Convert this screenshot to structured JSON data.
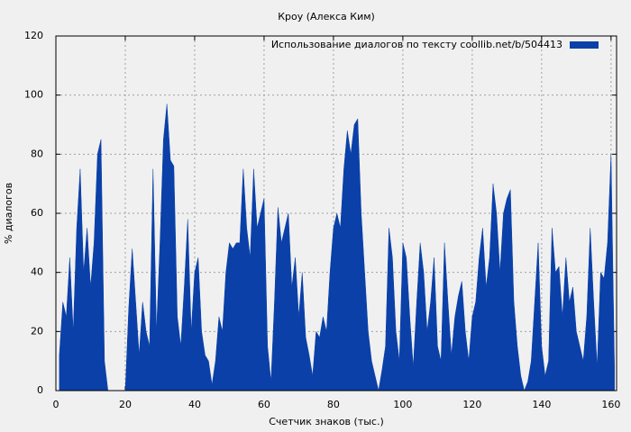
{
  "chart_data": {
    "type": "area",
    "title": "Кроу (Алекса Ким)",
    "x_label": "Счетчик знаков (тыс.)",
    "y_label": "% диалогов",
    "series": [
      {
        "name": "Использование диалогов по тексту  coollib.net/b/504413",
        "color": "#0a40a8",
        "x": [
          1,
          2,
          3,
          4,
          5,
          6,
          7,
          8,
          9,
          10,
          11,
          12,
          13,
          14,
          15,
          16,
          17,
          18,
          19,
          20,
          21,
          22,
          23,
          24,
          25,
          26,
          27,
          28,
          29,
          30,
          31,
          32,
          33,
          34,
          35,
          36,
          37,
          38,
          39,
          40,
          41,
          42,
          43,
          44,
          45,
          46,
          47,
          48,
          49,
          50,
          51,
          52,
          53,
          54,
          55,
          56,
          57,
          58,
          59,
          60,
          61,
          62,
          63,
          64,
          65,
          66,
          67,
          68,
          69,
          70,
          71,
          72,
          73,
          74,
          75,
          76,
          77,
          78,
          79,
          80,
          81,
          82,
          83,
          84,
          85,
          86,
          87,
          88,
          89,
          90,
          91,
          92,
          93,
          94,
          95,
          96,
          97,
          98,
          99,
          100,
          101,
          102,
          103,
          104,
          105,
          106,
          107,
          108,
          109,
          110,
          111,
          112,
          113,
          114,
          115,
          116,
          117,
          118,
          119,
          120,
          121,
          122,
          123,
          124,
          125,
          126,
          127,
          128,
          129,
          130,
          131,
          132,
          133,
          134,
          135,
          136,
          137,
          138,
          139,
          140,
          141,
          142,
          143,
          144,
          145,
          146,
          147,
          148,
          149,
          150,
          151,
          152,
          153,
          154,
          155,
          156,
          157,
          158,
          159,
          160,
          161
        ],
        "values": [
          12,
          30,
          25,
          45,
          20,
          55,
          75,
          40,
          55,
          35,
          50,
          80,
          85,
          10,
          0,
          0,
          0,
          0,
          0,
          0,
          28,
          48,
          30,
          12,
          30,
          20,
          15,
          75,
          20,
          50,
          85,
          97,
          78,
          76,
          25,
          15,
          35,
          58,
          20,
          40,
          45,
          20,
          12,
          10,
          2,
          10,
          25,
          20,
          40,
          50,
          48,
          50,
          50,
          75,
          55,
          45,
          75,
          55,
          60,
          65,
          15,
          3,
          30,
          62,
          50,
          55,
          60,
          35,
          45,
          25,
          40,
          18,
          12,
          5,
          20,
          18,
          25,
          20,
          40,
          55,
          60,
          55,
          75,
          88,
          80,
          90,
          92,
          60,
          40,
          20,
          10,
          5,
          0,
          7,
          15,
          55,
          45,
          20,
          10,
          50,
          45,
          25,
          8,
          30,
          50,
          40,
          20,
          30,
          45,
          15,
          10,
          50,
          30,
          12,
          25,
          32,
          37,
          20,
          10,
          25,
          30,
          45,
          55,
          35,
          45,
          70,
          60,
          40,
          60,
          65,
          68,
          30,
          15,
          5,
          0,
          3,
          10,
          30,
          50,
          15,
          5,
          10,
          55,
          40,
          42,
          25,
          45,
          30,
          35,
          20,
          15,
          10,
          25,
          55,
          30,
          8,
          40,
          38,
          50,
          80,
          8
        ]
      }
    ],
    "xlim": [
      0,
      161.6
    ],
    "xticks": [
      0,
      20,
      40,
      60,
      80,
      100,
      120,
      140,
      160
    ],
    "ylim": [
      0,
      120
    ],
    "yticks": [
      0,
      20,
      40,
      60,
      80,
      100,
      120
    ],
    "grid": true,
    "legend": "top-right"
  }
}
